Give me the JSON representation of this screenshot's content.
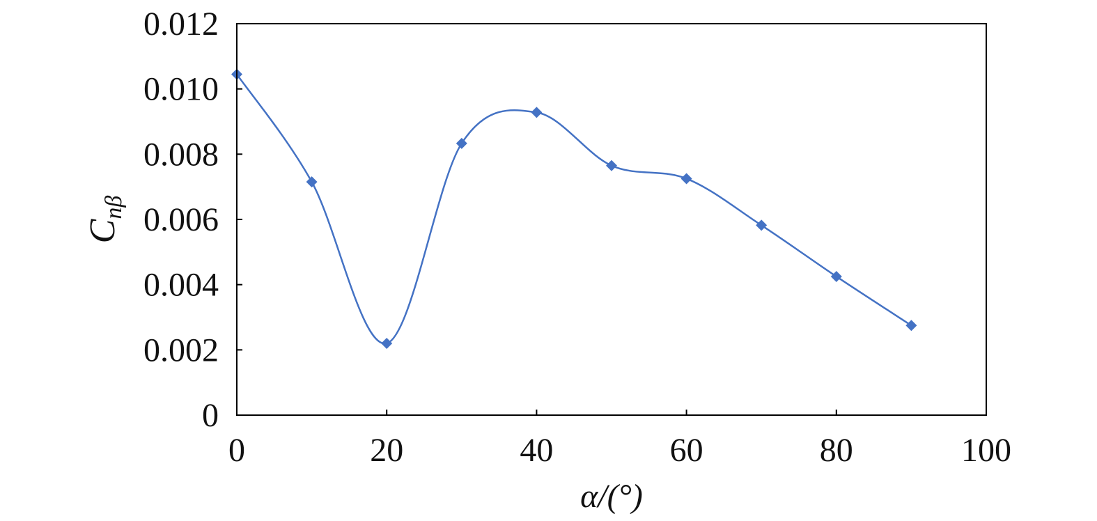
{
  "chart_data": {
    "type": "line",
    "title": "",
    "xlabel": "α/(°)",
    "ylabel": {
      "main": "C",
      "sub": "nβ"
    },
    "xlim": [
      0,
      100
    ],
    "ylim": [
      0,
      0.012
    ],
    "x_ticks": [
      "0",
      "20",
      "40",
      "60",
      "80",
      "100"
    ],
    "y_ticks": [
      "0",
      "0.002",
      "0.004",
      "0.006",
      "0.008",
      "0.010",
      "0.012"
    ],
    "grid": false,
    "legend": "none",
    "smooth": true,
    "series": [
      {
        "color": "#4472C4",
        "marker": "diamond",
        "x": [
          0,
          10,
          20,
          30,
          40,
          50,
          60,
          70,
          80,
          90
        ],
        "y": [
          0.01045,
          0.00715,
          0.0022,
          0.00833,
          0.00928,
          0.00765,
          0.00725,
          0.00582,
          0.00425,
          0.00275
        ]
      }
    ]
  }
}
